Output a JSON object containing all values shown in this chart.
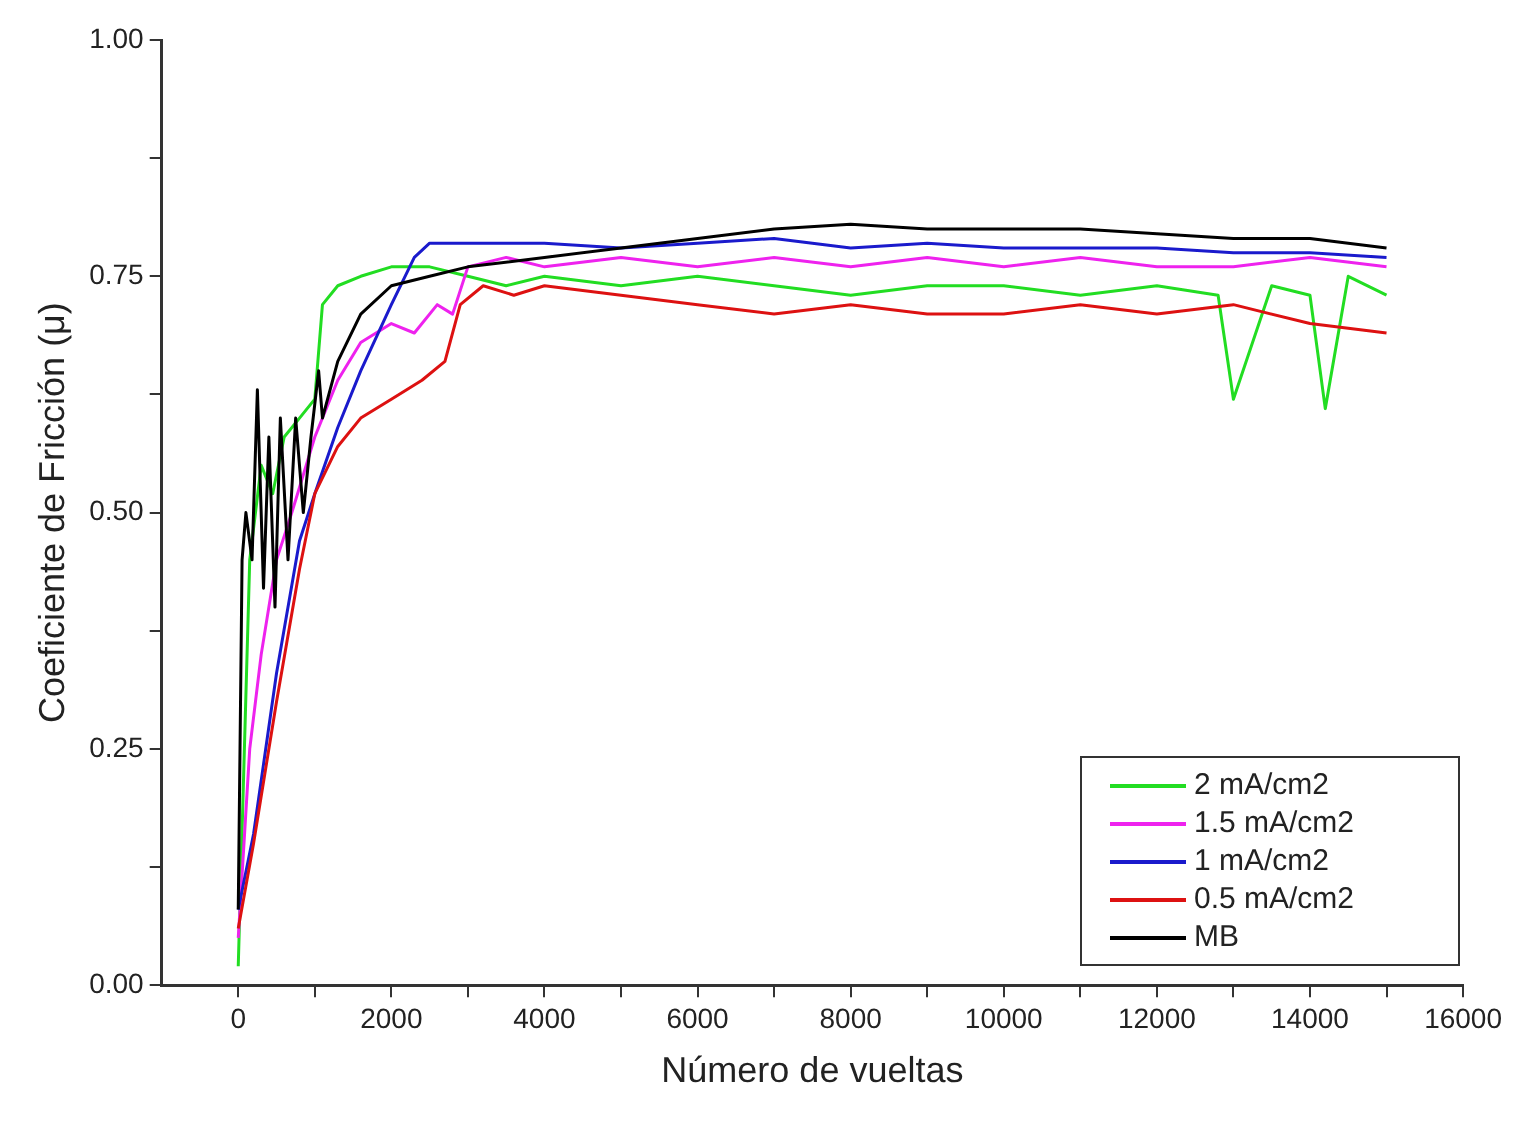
{
  "chart_data": {
    "type": "line",
    "xlabel": "Número de vueltas",
    "ylabel": "Coeficiente de Fricción (μ)",
    "xlim": [
      -1000,
      16000
    ],
    "xticks": [
      0,
      {
        "value": 1000,
        "label": null
      },
      2000,
      {
        "value": 3000,
        "label": null
      },
      4000,
      {
        "value": 5000,
        "label": null
      },
      6000,
      {
        "value": 7000,
        "label": null
      },
      8000,
      {
        "value": 9000,
        "label": null
      },
      10000,
      {
        "value": 11000,
        "label": null
      },
      12000,
      {
        "value": 13000,
        "label": null
      },
      14000,
      {
        "value": 15000,
        "label": null
      },
      16000
    ],
    "ylim": [
      0,
      1
    ],
    "yticks": [
      {
        "value": 0,
        "label": "0.00"
      },
      {
        "value": 0.125,
        "label": null
      },
      {
        "value": 0.25,
        "label": "0.25"
      },
      {
        "value": 0.375,
        "label": null
      },
      {
        "value": 0.5,
        "label": "0.50"
      },
      {
        "value": 0.625,
        "label": null
      },
      {
        "value": 0.75,
        "label": "0.75"
      },
      {
        "value": 0.875,
        "label": null
      },
      {
        "value": 1,
        "label": "1.00"
      }
    ],
    "grid": false,
    "legend": "bottom right",
    "marker": "none",
    "line_style": "solid",
    "series": [
      {
        "name": "2 mA/cm2",
        "color": "#22dd22",
        "x": [
          0,
          150,
          300,
          450,
          600,
          800,
          1000,
          1100,
          1300,
          1600,
          2000,
          2500,
          3000,
          3500,
          4000,
          5000,
          6000,
          7000,
          8000,
          9000,
          10000,
          11000,
          12000,
          12800,
          13000,
          13500,
          14000,
          14200,
          14500,
          15000
        ],
        "values": [
          0.02,
          0.45,
          0.55,
          0.52,
          0.58,
          0.6,
          0.62,
          0.72,
          0.74,
          0.75,
          0.76,
          0.76,
          0.75,
          0.74,
          0.75,
          0.74,
          0.75,
          0.74,
          0.73,
          0.74,
          0.74,
          0.73,
          0.74,
          0.73,
          0.62,
          0.74,
          0.73,
          0.61,
          0.75,
          0.73
        ]
      },
      {
        "name": "1.5 mA/cm2",
        "color": "#ee22ee",
        "x": [
          0,
          150,
          300,
          500,
          700,
          1000,
          1300,
          1600,
          2000,
          2300,
          2600,
          2800,
          3000,
          3500,
          4000,
          5000,
          6000,
          7000,
          8000,
          9000,
          10000,
          11000,
          12000,
          13000,
          14000,
          15000
        ],
        "values": [
          0.05,
          0.25,
          0.35,
          0.45,
          0.5,
          0.58,
          0.64,
          0.68,
          0.7,
          0.69,
          0.72,
          0.71,
          0.76,
          0.77,
          0.76,
          0.77,
          0.76,
          0.77,
          0.76,
          0.77,
          0.76,
          0.77,
          0.76,
          0.76,
          0.77,
          0.76
        ]
      },
      {
        "name": "1 mA/cm2",
        "color": "#1a1acc",
        "x": [
          0,
          200,
          500,
          800,
          1000,
          1300,
          1600,
          2000,
          2300,
          2500,
          3000,
          4000,
          5000,
          6000,
          7000,
          8000,
          9000,
          10000,
          11000,
          12000,
          13000,
          14000,
          15000
        ],
        "values": [
          0.08,
          0.16,
          0.33,
          0.47,
          0.52,
          0.59,
          0.65,
          0.72,
          0.77,
          0.785,
          0.785,
          0.785,
          0.78,
          0.785,
          0.79,
          0.78,
          0.785,
          0.78,
          0.78,
          0.78,
          0.775,
          0.775,
          0.77
        ]
      },
      {
        "name": "0.5 mA/cm2",
        "color": "#dd1111",
        "x": [
          0,
          200,
          500,
          800,
          1000,
          1300,
          1600,
          2000,
          2400,
          2700,
          2900,
          3200,
          3600,
          4000,
          5000,
          6000,
          7000,
          8000,
          9000,
          10000,
          11000,
          12000,
          13000,
          14000,
          15000
        ],
        "values": [
          0.06,
          0.15,
          0.3,
          0.44,
          0.52,
          0.57,
          0.6,
          0.62,
          0.64,
          0.66,
          0.72,
          0.74,
          0.73,
          0.74,
          0.73,
          0.72,
          0.71,
          0.72,
          0.71,
          0.71,
          0.72,
          0.71,
          0.72,
          0.7,
          0.69
        ]
      },
      {
        "name": "MB",
        "color": "#000000",
        "x": [
          0,
          50,
          100,
          180,
          250,
          330,
          400,
          480,
          550,
          650,
          750,
          850,
          950,
          1050,
          1100,
          1300,
          1600,
          2000,
          2500,
          3000,
          4000,
          5000,
          6000,
          7000,
          8000,
          9000,
          10000,
          11000,
          12000,
          13000,
          14000,
          15000
        ],
        "values": [
          0.08,
          0.45,
          0.5,
          0.45,
          0.63,
          0.42,
          0.58,
          0.4,
          0.6,
          0.45,
          0.6,
          0.5,
          0.58,
          0.65,
          0.6,
          0.66,
          0.71,
          0.74,
          0.75,
          0.76,
          0.77,
          0.78,
          0.79,
          0.8,
          0.805,
          0.8,
          0.8,
          0.8,
          0.795,
          0.79,
          0.79,
          0.78
        ]
      }
    ]
  }
}
